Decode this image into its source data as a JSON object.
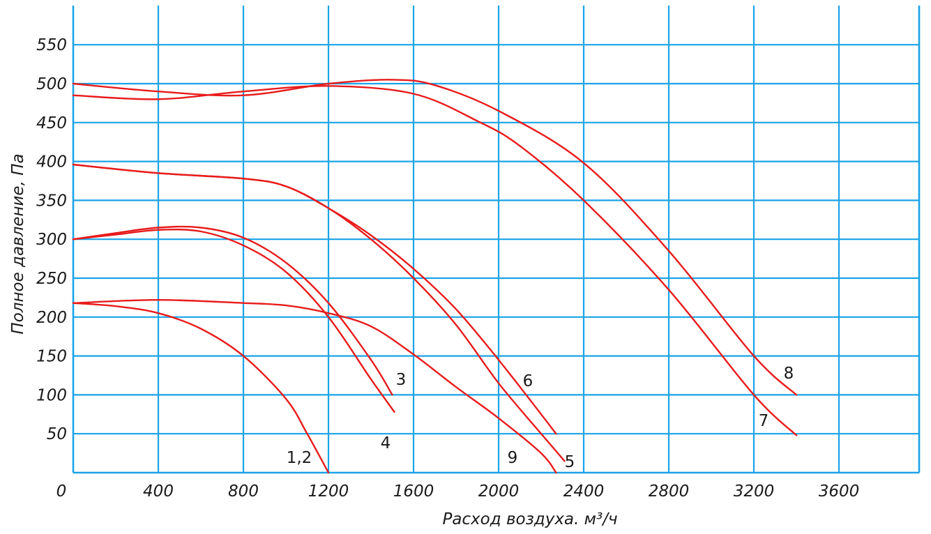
{
  "chart_data": {
    "type": "line",
    "title": "",
    "xlabel": "Расход воздуха. м³/ч",
    "ylabel": "Полное давление, Па",
    "xlim": [
      0,
      4900
    ],
    "ylim": [
      0,
      560
    ],
    "x_ticks": [
      0,
      400,
      800,
      1200,
      1600,
      2000,
      2400,
      2800,
      3200,
      3600
    ],
    "y_ticks": [
      50,
      100,
      150,
      200,
      250,
      300,
      350,
      400,
      450,
      500,
      550
    ],
    "x_tick_labels": [
      "0",
      "400",
      "800",
      "1200",
      "1600",
      "2000",
      "2400",
      "2800",
      "3200",
      "3600"
    ],
    "y_tick_labels": [
      "50",
      "100",
      "150",
      "200",
      "250",
      "300",
      "350",
      "400",
      "450",
      "500",
      "550"
    ],
    "grid": true,
    "series": [
      {
        "name": "1,2",
        "color": "#e81b1b",
        "x": [
          0,
          200,
          400,
          600,
          800,
          1000,
          1100,
          1200
        ],
        "y": [
          218,
          214,
          205,
          185,
          150,
          95,
          50,
          0
        ]
      },
      {
        "name": "9",
        "color": "#e81b1b",
        "x": [
          0,
          400,
          800,
          1000,
          1200,
          1400,
          1600,
          1800,
          2000,
          2200,
          2270
        ],
        "y": [
          218,
          222,
          218,
          215,
          205,
          188,
          152,
          110,
          70,
          25,
          0
        ]
      },
      {
        "name": "3",
        "color": "#e81b1b",
        "x": [
          0,
          200,
          400,
          600,
          800,
          1000,
          1200,
          1400,
          1500
        ],
        "y": [
          300,
          308,
          315,
          315,
          302,
          270,
          218,
          145,
          100
        ]
      },
      {
        "name": "4",
        "color": "#e81b1b",
        "x": [
          0,
          200,
          400,
          600,
          800,
          1000,
          1200,
          1400,
          1510
        ],
        "y": [
          300,
          306,
          312,
          310,
          292,
          258,
          200,
          120,
          78
        ]
      },
      {
        "name": "5",
        "color": "#e81b1b",
        "x": [
          0,
          400,
          800,
          1000,
          1200,
          1400,
          1600,
          1800,
          2000,
          2200,
          2310
        ],
        "y": [
          396,
          385,
          378,
          368,
          340,
          300,
          250,
          190,
          115,
          50,
          15
        ]
      },
      {
        "name": "6",
        "color": "#e81b1b",
        "x": [
          0,
          400,
          800,
          1000,
          1200,
          1400,
          1600,
          1800,
          2000,
          2200,
          2270
        ],
        "y": [
          396,
          385,
          378,
          368,
          340,
          305,
          262,
          210,
          145,
          75,
          50
        ]
      },
      {
        "name": "7",
        "color": "#e81b1b",
        "x": [
          0,
          400,
          800,
          1200,
          1600,
          1900,
          2100,
          2400,
          2800,
          3200,
          3400
        ],
        "y": [
          485,
          480,
          490,
          497,
          487,
          452,
          420,
          350,
          235,
          100,
          48
        ]
      },
      {
        "name": "8",
        "color": "#e81b1b",
        "x": [
          0,
          400,
          800,
          1200,
          1500,
          1700,
          2000,
          2400,
          2800,
          3200,
          3400
        ],
        "y": [
          500,
          490,
          485,
          500,
          505,
          498,
          465,
          398,
          285,
          150,
          100
        ]
      }
    ],
    "annotations": [
      {
        "text": "1,2",
        "series": "1,2"
      },
      {
        "text": "9",
        "series": "9"
      },
      {
        "text": "3",
        "series": "3"
      },
      {
        "text": "4",
        "series": "4"
      },
      {
        "text": "5",
        "series": "5"
      },
      {
        "text": "6",
        "series": "6"
      },
      {
        "text": "7",
        "series": "7"
      },
      {
        "text": "8",
        "series": "8"
      }
    ]
  }
}
